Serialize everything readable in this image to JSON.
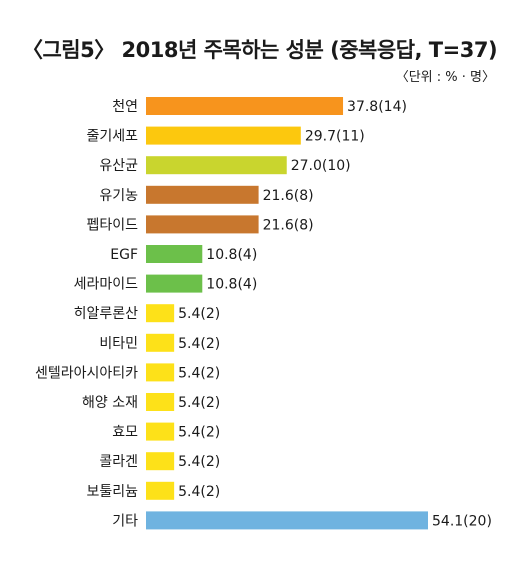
{
  "chart_data": {
    "type": "bar",
    "orientation": "horizontal",
    "title": "〈그림5〉 2018년 주목하는 성분 (중복응답,  T=37)",
    "unit_note": "〈단위 : % · 명〉",
    "categories": [
      "천연",
      "줄기세포",
      "유산균",
      "유기농",
      "펩타이드",
      "EGF",
      "세라마이드",
      "히알루론산",
      "비타민",
      "센텔라아시아티카",
      "해양 소재",
      "효모",
      "콜라겐",
      "보툴리늄",
      "기타"
    ],
    "values": [
      37.8,
      29.7,
      27.0,
      21.6,
      21.6,
      10.8,
      10.8,
      5.4,
      5.4,
      5.4,
      5.4,
      5.4,
      5.4,
      5.4,
      54.1
    ],
    "labels": [
      "37.8(14)",
      "29.7(11)",
      "27.0(10)",
      "21.6(8)",
      "21.6(8)",
      "10.8(4)",
      "10.8(4)",
      "5.4(2)",
      "5.4(2)",
      "5.4(2)",
      "5.4(2)",
      "5.4(2)",
      "5.4(2)",
      "5.4(2)",
      "54.1(20)"
    ],
    "colors": [
      "#f7941d",
      "#fcc80e",
      "#c9d52e",
      "#c8772e",
      "#c8772e",
      "#6cc04a",
      "#6cc04a",
      "#fde119",
      "#fde119",
      "#fde119",
      "#fde119",
      "#fde119",
      "#fde119",
      "#fde119",
      "#6fb3e0"
    ],
    "xlim": [
      0,
      54.1
    ],
    "grid": false
  }
}
